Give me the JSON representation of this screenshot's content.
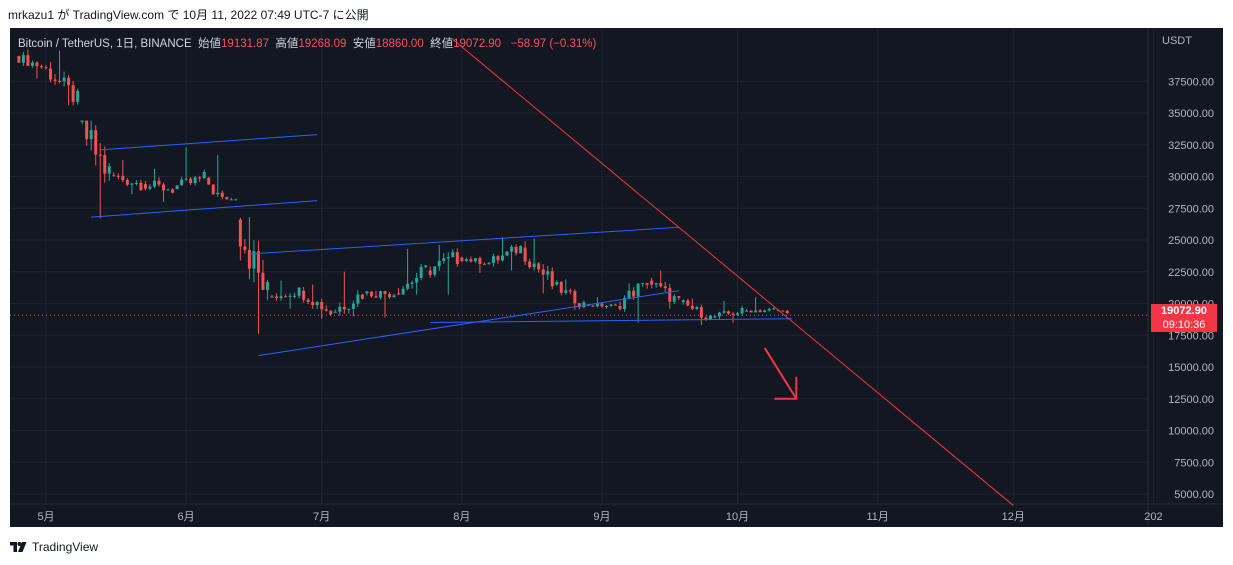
{
  "header": {
    "text": "mrkazu1 が TradingView.com で 10月 11, 2022 07:49 UTC-7 に公開"
  },
  "footer": {
    "brand": "TradingView",
    "logo_icon": "tradingview-logo-icon"
  },
  "legend": {
    "symbol": "Bitcoin / TetherUS, 1日, BINANCE",
    "open_label": "始値",
    "open": "19131.87",
    "high_label": "高値",
    "high": "19268.09",
    "low_label": "安値",
    "low": "18860.00",
    "close_label": "終値",
    "close": "19072.90",
    "change": "−58.97 (−0.31%)"
  },
  "price_tag": {
    "price": "19072.90",
    "countdown": "09:10:36"
  },
  "colors": {
    "background": "#131722",
    "up": "#26a69a",
    "down": "#ef5350",
    "channel": "#2962ff",
    "trendline": "#f23645",
    "text": "#b2b5be",
    "grid": "#1f2330"
  },
  "chart_data": {
    "type": "candlestick",
    "title": "Bitcoin / TetherUS, 1日, BINANCE",
    "currency_label": "USDT",
    "y_ticks": [
      5000,
      7500,
      10000,
      12500,
      15000,
      17500,
      20000,
      22500,
      25000,
      27500,
      30000,
      32500,
      35000,
      37500
    ],
    "y_tick_labels": [
      "5000.00",
      "7500.00",
      "10000.00",
      "12500.00",
      "15000.00",
      "17500.00",
      "20000.00",
      "22500.00",
      "25000.00",
      "27500.00",
      "30000.00",
      "32500.00",
      "35000.00",
      "37500.00"
    ],
    "x_tick_labels": [
      "5月",
      "6月",
      "7月",
      "8月",
      "9月",
      "10月",
      "11月",
      "12月",
      "202"
    ],
    "x_ticks": [
      "2022-05-01",
      "2022-06-01",
      "2022-07-01",
      "2022-08-01",
      "2022-09-01",
      "2022-10-01",
      "2022-11-01",
      "2022-12-01",
      "2023-01-01"
    ],
    "ylim": [
      4000,
      40800
    ],
    "last_price": 19072.9,
    "ohlc_weekly_approx": [
      {
        "date": "2022-04-25",
        "o": 39500,
        "h": 40000,
        "l": 37700,
        "c": 38500
      },
      {
        "date": "2022-05-02",
        "o": 38500,
        "h": 39900,
        "l": 35600,
        "c": 36000
      },
      {
        "date": "2022-05-09",
        "o": 34300,
        "h": 34400,
        "l": 26700,
        "c": 30100
      },
      {
        "date": "2022-05-16",
        "o": 30100,
        "h": 31300,
        "l": 28600,
        "c": 29400
      },
      {
        "date": "2022-05-23",
        "o": 29400,
        "h": 30600,
        "l": 28000,
        "c": 29000
      },
      {
        "date": "2022-05-30",
        "o": 29000,
        "h": 32300,
        "l": 29300,
        "c": 29900
      },
      {
        "date": "2022-06-06",
        "o": 29900,
        "h": 31700,
        "l": 28200,
        "c": 26600
      },
      {
        "date": "2022-06-13",
        "o": 26600,
        "h": 26800,
        "l": 17600,
        "c": 20500
      },
      {
        "date": "2022-06-20",
        "o": 20500,
        "h": 21800,
        "l": 19600,
        "c": 21000
      },
      {
        "date": "2022-06-27",
        "o": 21000,
        "h": 21500,
        "l": 18800,
        "c": 19300
      },
      {
        "date": "2022-07-04",
        "o": 19300,
        "h": 22500,
        "l": 19000,
        "c": 20800
      },
      {
        "date": "2022-07-11",
        "o": 20800,
        "h": 21000,
        "l": 18900,
        "c": 20800
      },
      {
        "date": "2022-07-18",
        "o": 20800,
        "h": 24300,
        "l": 20700,
        "c": 22600
      },
      {
        "date": "2022-07-25",
        "o": 22600,
        "h": 24600,
        "l": 20700,
        "c": 23600
      },
      {
        "date": "2022-08-01",
        "o": 23600,
        "h": 23700,
        "l": 22400,
        "c": 23200
      },
      {
        "date": "2022-08-08",
        "o": 23200,
        "h": 25200,
        "l": 22600,
        "c": 24400
      },
      {
        "date": "2022-08-15",
        "o": 24400,
        "h": 25100,
        "l": 20800,
        "c": 21500
      },
      {
        "date": "2022-08-22",
        "o": 21500,
        "h": 21900,
        "l": 19500,
        "c": 19900
      },
      {
        "date": "2022-08-29",
        "o": 19900,
        "h": 20500,
        "l": 19600,
        "c": 19800
      },
      {
        "date": "2022-09-05",
        "o": 19800,
        "h": 21600,
        "l": 18500,
        "c": 21800
      },
      {
        "date": "2022-09-12",
        "o": 21800,
        "h": 22600,
        "l": 19600,
        "c": 20100
      },
      {
        "date": "2022-09-19",
        "o": 20100,
        "h": 20400,
        "l": 18300,
        "c": 18900
      },
      {
        "date": "2022-09-26",
        "o": 18900,
        "h": 20200,
        "l": 18500,
        "c": 19400
      },
      {
        "date": "2022-10-03",
        "o": 19400,
        "h": 20500,
        "l": 19300,
        "c": 19500
      },
      {
        "date": "2022-10-10",
        "o": 19500,
        "h": 19500,
        "l": 18900,
        "c": 19100
      }
    ],
    "drawings": {
      "channel_1": {
        "upper": [
          [
            "2022-05-13",
            32100
          ],
          [
            "2022-06-30",
            33300
          ]
        ],
        "lower": [
          [
            "2022-05-11",
            26800
          ],
          [
            "2022-06-30",
            28100
          ]
        ]
      },
      "channel_2": {
        "upper": [
          [
            "2022-06-15",
            23900
          ],
          [
            "2022-09-18",
            26000
          ]
        ],
        "lower": [
          [
            "2022-06-17",
            15900
          ],
          [
            "2022-09-18",
            21000
          ]
        ]
      },
      "support_line": [
        [
          "2022-07-25",
          18500
        ],
        [
          "2022-10-13",
          18800
        ]
      ],
      "trendline": [
        [
          "2022-07-30",
          40800
        ],
        [
          "2022-12-01",
          4100
        ]
      ],
      "arrow": {
        "from": [
          "2022-10-07",
          16500
        ],
        "to": [
          "2022-10-14",
          12500
        ]
      }
    }
  }
}
